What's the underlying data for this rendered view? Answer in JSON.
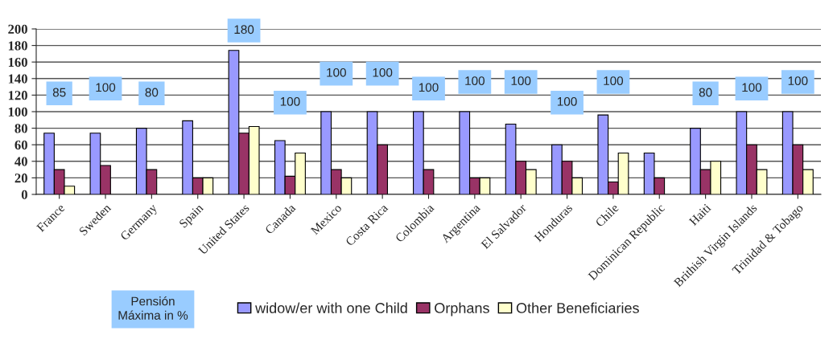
{
  "chart_data": {
    "type": "bar",
    "categories": [
      "France",
      "Sweden",
      "Germany",
      "Spain",
      "United States",
      "Canada",
      "Mexico",
      "Costa Rica",
      "Colombia",
      "Argentina",
      "El Salvador",
      "Honduras",
      "Chile",
      "Dominican Republic",
      "Haiti",
      "Brithish Virgin Islands",
      "Trinidad & Tobago"
    ],
    "series": [
      {
        "name": "widow/er with one Child",
        "color": "#9999ff",
        "values": [
          74,
          74,
          80,
          89,
          174,
          65,
          100,
          100,
          100,
          100,
          85,
          60,
          96,
          50,
          80,
          100,
          100
        ]
      },
      {
        "name": "Orphans",
        "color": "#993366",
        "values": [
          30,
          35,
          30,
          20,
          74,
          22,
          30,
          60,
          30,
          20,
          40,
          40,
          15,
          20,
          30,
          60,
          60
        ]
      },
      {
        "name": "Other Beneficiaries",
        "color": "#ffffcc",
        "values": [
          10,
          null,
          null,
          20,
          82,
          50,
          20,
          null,
          null,
          20,
          30,
          20,
          50,
          null,
          40,
          30,
          30
        ]
      }
    ],
    "ylim": [
      0,
      200
    ],
    "yticks": [
      0,
      20,
      40,
      60,
      80,
      100,
      120,
      140,
      160,
      180,
      200
    ],
    "grid": "y",
    "legend": "bottom",
    "annotations": [
      "Pensión\nMáxima in %",
      {
        "text": "85",
        "x": "France",
        "y": 122
      },
      {
        "text": "100",
        "x": "Sweden",
        "y": 128
      },
      {
        "text": "80",
        "x": "Germany",
        "y": 122
      },
      {
        "text": "180",
        "x": "United States",
        "y": 198
      },
      {
        "text": "100",
        "x": "Canada",
        "y": 111
      },
      {
        "text": "100",
        "x": "Mexico",
        "y": 146
      },
      {
        "text": "100",
        "x": "Costa Rica",
        "y": 146
      },
      {
        "text": "100",
        "x": "Colombia",
        "y": 128
      },
      {
        "text": "100",
        "x": "Argentina",
        "y": 136
      },
      {
        "text": "100",
        "x": "El Salvador",
        "y": 136
      },
      {
        "text": "100",
        "x": "Honduras",
        "y": 111
      },
      {
        "text": "100",
        "x": "Chile",
        "y": 136
      },
      {
        "text": "80",
        "x": "Haiti",
        "y": 122
      },
      {
        "text": "100",
        "x": "Brithish Virgin Islands",
        "y": 128
      },
      {
        "text": "100",
        "x": "Trinidad & Tobago",
        "y": 136
      }
    ]
  }
}
